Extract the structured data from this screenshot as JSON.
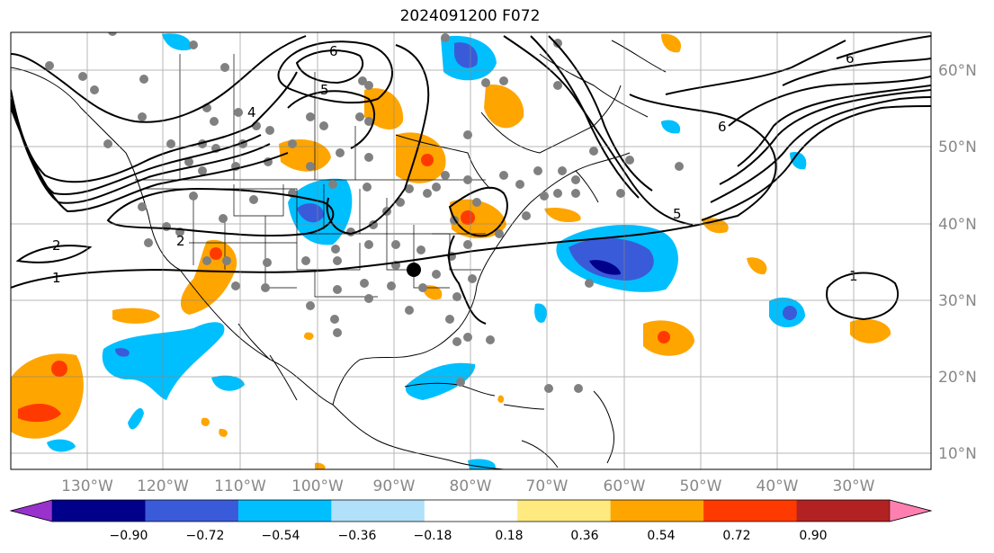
{
  "title": "2024091200 F072",
  "lon_labels": [
    "130°W",
    "120°W",
    "110°W",
    "100°W",
    "90°W",
    "80°W",
    "70°W",
    "60°W",
    "50°W",
    "40°W",
    "30°W"
  ],
  "lat_labels": [
    "60°N",
    "50°N",
    "40°N",
    "30°N",
    "20°N",
    "10°N"
  ],
  "colorbar": {
    "labels": [
      "−0.90",
      "−0.72",
      "−0.54",
      "−0.36",
      "−0.18",
      "0.18",
      "0.36",
      "0.54",
      "0.72",
      "0.90"
    ],
    "colors": [
      "#9932cc",
      "#00008b",
      "#3a5bd9",
      "#00bfff",
      "#b0e0fa",
      "#ffffff",
      "#ffea80",
      "#ffa500",
      "#ff3a00",
      "#b22222",
      "#ff80b0"
    ]
  },
  "contour_labels": [
    {
      "text": "6"
    },
    {
      "text": "5"
    },
    {
      "text": "4"
    },
    {
      "text": "2"
    },
    {
      "text": "1"
    },
    {
      "text": "6"
    },
    {
      "text": "5"
    },
    {
      "text": "2"
    },
    {
      "text": "1"
    },
    {
      "text": "6"
    }
  ],
  "colors": {
    "orange": "#ffa500",
    "red": "#ff3a00",
    "light_blue": "#00bfff",
    "mid_blue": "#3a5bd9",
    "dark_blue": "#00008b",
    "station_dot": "#808080"
  }
}
